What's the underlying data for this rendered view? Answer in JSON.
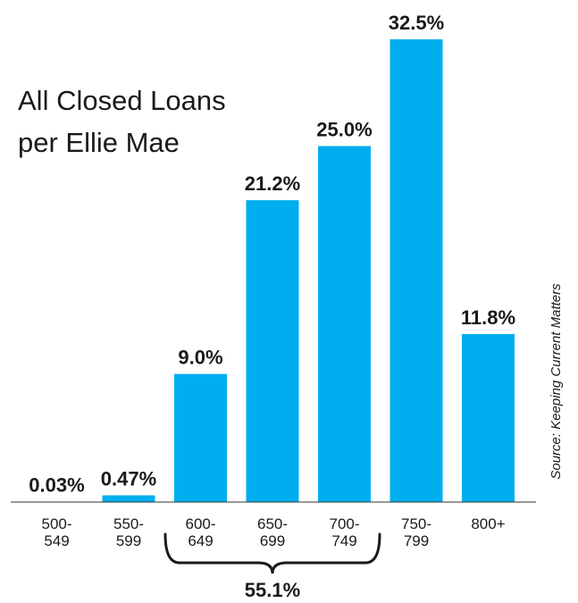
{
  "chart_data": {
    "type": "bar",
    "title": [
      "All Closed Loans",
      "per Ellie Mae"
    ],
    "categories": [
      [
        "500-",
        "549"
      ],
      [
        "550-",
        "599"
      ],
      [
        "600-",
        "649"
      ],
      [
        "650-",
        "699"
      ],
      [
        "700-",
        "749"
      ],
      [
        "750-",
        "799"
      ],
      [
        "800+"
      ]
    ],
    "values": [
      0.03,
      0.47,
      9.0,
      21.2,
      25.0,
      32.5,
      11.8
    ],
    "data_labels": [
      "0.03%",
      "0.47%",
      "9.0%",
      "21.2%",
      "25.0%",
      "32.5%",
      "11.8%"
    ],
    "ylim": [
      0,
      32.5
    ],
    "grid": false,
    "bar_color": "#00aeef",
    "bracket": {
      "from_category": 2,
      "to_category": 4,
      "label": "55.1%"
    },
    "source": "Source: Keeping Current Matters"
  }
}
